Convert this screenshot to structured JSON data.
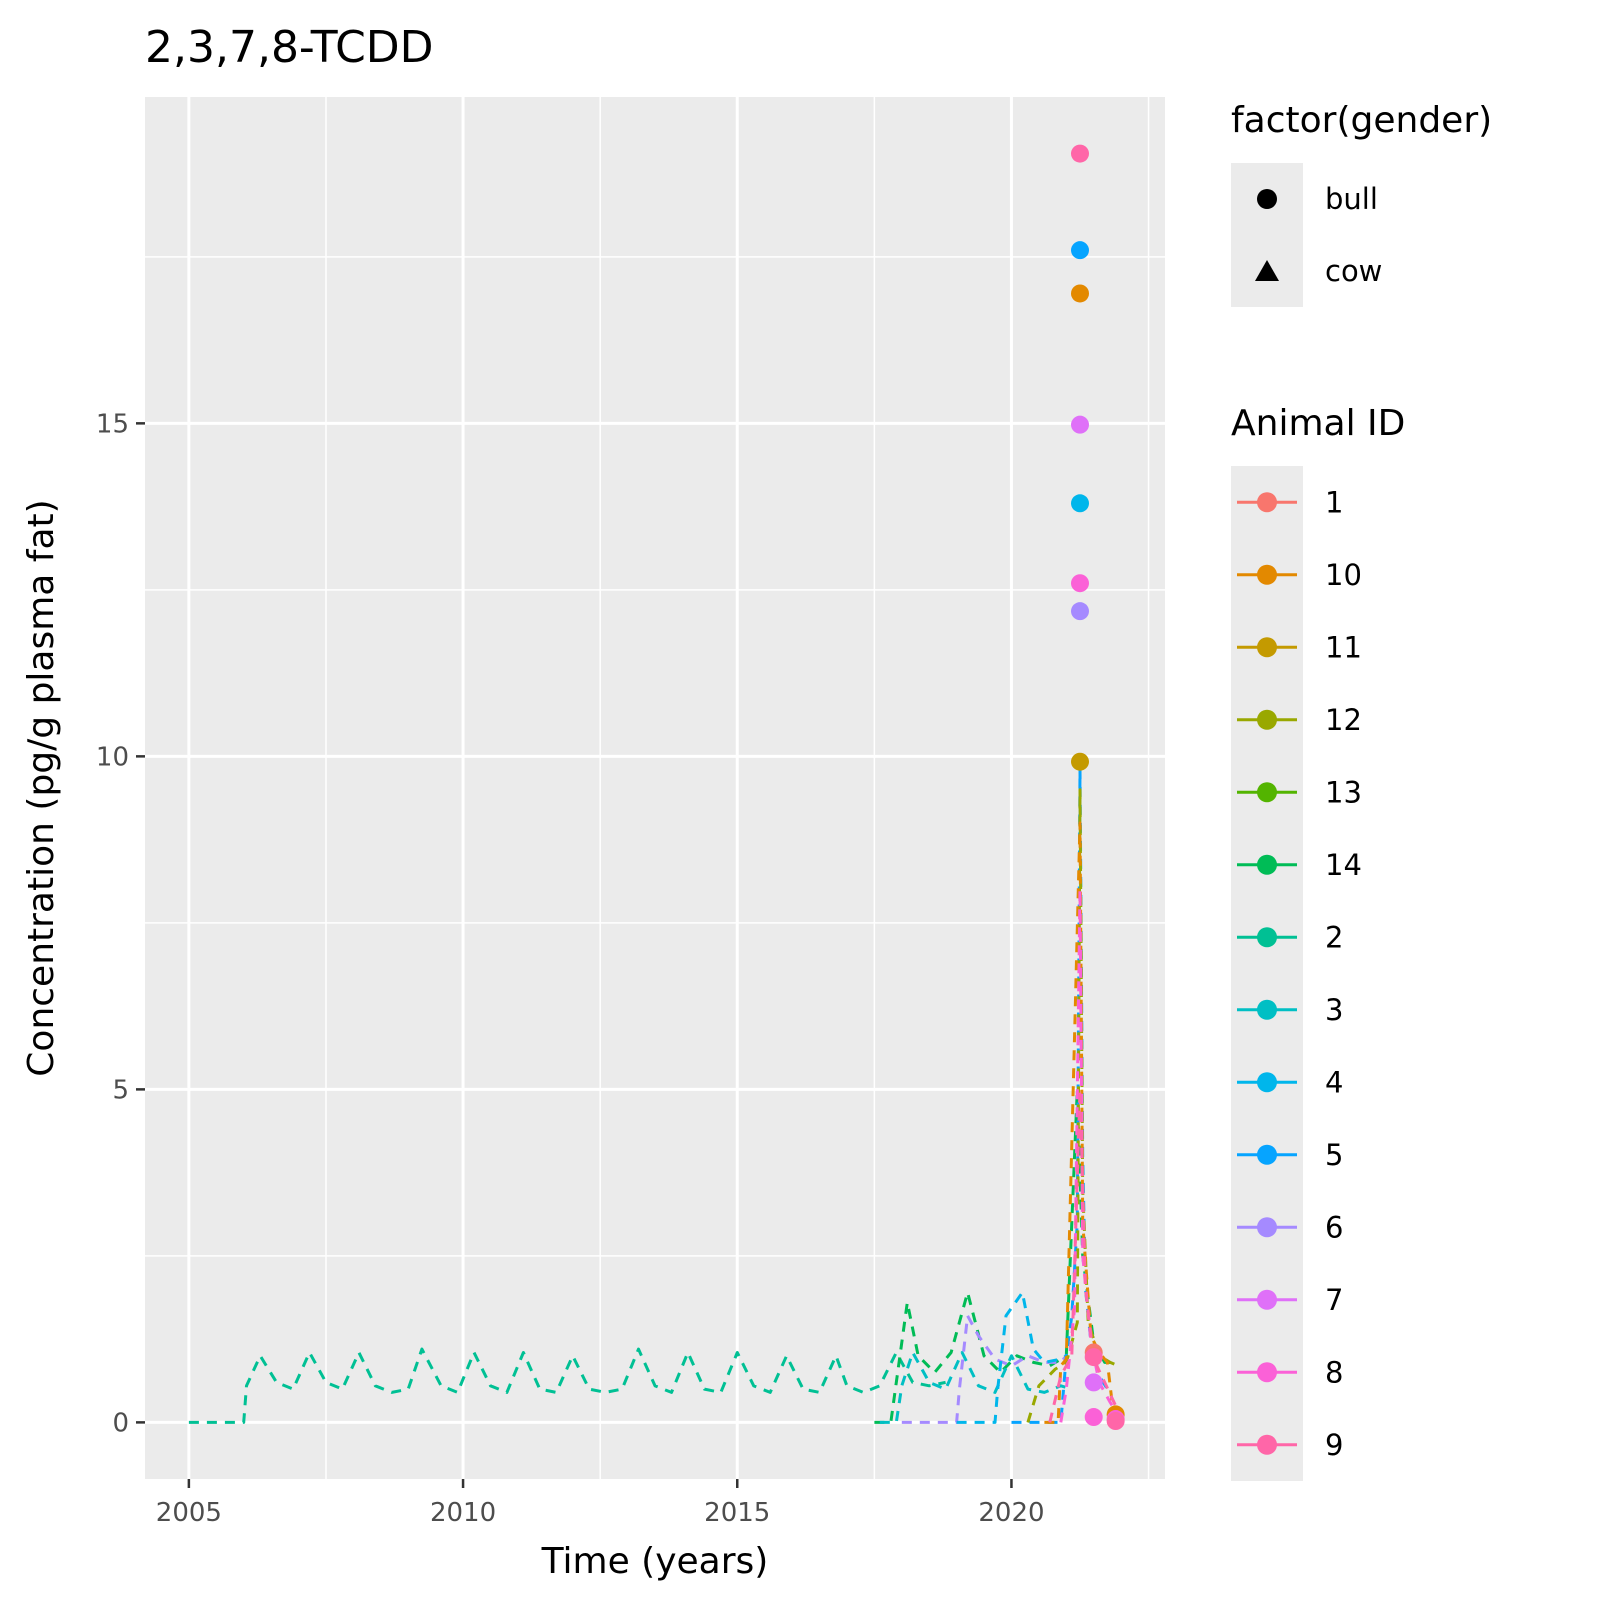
{
  "chart_data": {
    "type": "line",
    "title": "2,3,7,8-TCDD",
    "xlabel": "Time (years)",
    "ylabel": "Concentration (pg/g plasma fat)",
    "xlim": [
      2004.2,
      2022.8
    ],
    "ylim": [
      -0.85,
      19.9
    ],
    "x_ticks": [
      2005,
      2010,
      2015,
      2020
    ],
    "x_tick_labels": [
      "2005",
      "2010",
      "2015",
      "2020"
    ],
    "y_ticks": [
      0,
      5,
      10,
      15
    ],
    "y_tick_labels": [
      "0",
      "5",
      "10",
      "15"
    ],
    "grid": true,
    "legend_position": "right",
    "shape_legend": {
      "title": "factor(gender)",
      "entries": [
        {
          "label": "bull",
          "shape": "circle"
        },
        {
          "label": "cow",
          "shape": "triangle"
        }
      ]
    },
    "color_legend": {
      "title": "Animal ID",
      "entries": [
        {
          "label": "1",
          "color": "#F8766D"
        },
        {
          "label": "10",
          "color": "#E38900"
        },
        {
          "label": "11",
          "color": "#C49A00"
        },
        {
          "label": "12",
          "color": "#99A800"
        },
        {
          "label": "13",
          "color": "#53B400"
        },
        {
          "label": "14",
          "color": "#00BC56"
        },
        {
          "label": "2",
          "color": "#00C094"
        },
        {
          "label": "3",
          "color": "#00BFC4"
        },
        {
          "label": "4",
          "color": "#00B6EB"
        },
        {
          "label": "5",
          "color": "#06A4FF"
        },
        {
          "label": "6",
          "color": "#A58AFF"
        },
        {
          "label": "7",
          "color": "#DF70F8"
        },
        {
          "label": "8",
          "color": "#FB61D7"
        },
        {
          "label": "9",
          "color": "#FF66A8"
        }
      ]
    },
    "series": [
      {
        "id": "2",
        "color": "#00C094",
        "x": [
          2005.0,
          2006.0,
          2006.05,
          2006.3,
          2006.6,
          2006.9,
          2007.2,
          2007.5,
          2007.8,
          2008.1,
          2008.4,
          2008.7,
          2009.0,
          2009.25,
          2009.6,
          2009.9,
          2010.2,
          2010.5,
          2010.8,
          2011.1,
          2011.4,
          2011.7,
          2012.0,
          2012.3,
          2012.6,
          2012.9,
          2013.2,
          2013.5,
          2013.8,
          2014.1,
          2014.4,
          2014.7,
          2015.0,
          2015.3,
          2015.6,
          2015.9,
          2016.2,
          2016.5,
          2016.8,
          2017.0,
          2017.3,
          2017.6,
          2017.9,
          2018.2,
          2018.5,
          2018.8
        ],
        "y": [
          0.0,
          0.0,
          0.55,
          1.0,
          0.6,
          0.5,
          1.05,
          0.6,
          0.5,
          1.05,
          0.55,
          0.45,
          0.5,
          1.1,
          0.55,
          0.45,
          1.05,
          0.55,
          0.45,
          1.05,
          0.5,
          0.45,
          1.0,
          0.5,
          0.45,
          0.5,
          1.1,
          0.55,
          0.45,
          1.05,
          0.5,
          0.45,
          1.05,
          0.55,
          0.45,
          1.0,
          0.5,
          0.45,
          1.0,
          0.55,
          0.45,
          0.55,
          1.05,
          0.6,
          0.55,
          0.6
        ]
      },
      {
        "id": "14",
        "color": "#00BC56",
        "x": [
          2017.5,
          2017.8,
          2017.9,
          2018.1,
          2018.3,
          2018.6,
          2018.9,
          2019.2,
          2019.5,
          2019.8,
          2020.1,
          2020.4,
          2020.7,
          2021.0,
          2021.2,
          2021.3,
          2021.5,
          2021.7,
          2021.9
        ],
        "y": [
          0.0,
          0.0,
          0.6,
          1.8,
          1.0,
          0.75,
          1.05,
          1.95,
          1.0,
          0.75,
          1.0,
          0.9,
          0.85,
          1.0,
          5.0,
          2.5,
          1.2,
          0.9,
          0.9
        ]
      },
      {
        "id": "3",
        "color": "#00BFC4",
        "x": [
          2017.6,
          2017.9,
          2018.0,
          2018.2,
          2018.5,
          2018.8,
          2019.1,
          2019.4,
          2019.7,
          2020.0,
          2020.3,
          2020.6,
          2020.9,
          2021.1
        ],
        "y": [
          0.0,
          0.0,
          0.55,
          1.05,
          0.6,
          0.5,
          1.05,
          0.55,
          0.45,
          1.0,
          0.5,
          0.45,
          0.55,
          0.5
        ]
      },
      {
        "id": "6",
        "color": "#A58AFF",
        "x": [
          2018.0,
          2019.0,
          2019.05,
          2019.2,
          2019.4,
          2019.7,
          2020.0,
          2020.3,
          2020.6,
          2020.9,
          2021.0
        ],
        "y": [
          0.0,
          0.0,
          0.5,
          1.6,
          1.3,
          0.95,
          0.85,
          1.0,
          0.9,
          0.9,
          1.0
        ]
      },
      {
        "id": "4",
        "color": "#00B6EB",
        "x": [
          2019.0,
          2019.7,
          2019.75,
          2019.9,
          2020.2,
          2020.4,
          2020.6,
          2020.9,
          2021.0
        ],
        "y": [
          0.0,
          0.0,
          0.5,
          1.6,
          1.95,
          1.1,
          0.9,
          0.95,
          1.0
        ]
      },
      {
        "id": "5",
        "color": "#06A4FF",
        "x": [
          2020.0,
          2020.9,
          2021.0,
          2021.1,
          2021.2,
          2021.25,
          2021.3,
          2021.35,
          2021.45,
          2021.6,
          2021.75
        ],
        "y": [
          0.0,
          0.0,
          1.0,
          1.6,
          3.0,
          9.8,
          4.0,
          2.0,
          1.2,
          0.7,
          0.5
        ]
      },
      {
        "id": "12",
        "color": "#99A800",
        "x": [
          2020.3,
          2020.5,
          2020.8,
          2021.0,
          2021.2,
          2021.25,
          2021.3,
          2021.4,
          2021.6,
          2021.8,
          2021.95
        ],
        "y": [
          0.0,
          0.55,
          0.8,
          0.9,
          1.5,
          9.5,
          3.5,
          1.5,
          1.0,
          0.9,
          0.85
        ]
      },
      {
        "id": "10",
        "color": "#E38900",
        "x": [
          2020.6,
          2020.85,
          2020.9,
          2021.0,
          2021.25,
          2021.3,
          2021.45,
          2021.6,
          2021.75,
          2021.85,
          2021.95
        ],
        "y": [
          0.0,
          0.0,
          0.85,
          0.95,
          9.0,
          3.0,
          1.3,
          1.05,
          0.9,
          0.2,
          0.15
        ]
      },
      {
        "id": "8",
        "color": "#FB61D7",
        "x": [
          2020.9,
          2021.0,
          2021.15,
          2021.25,
          2021.3,
          2021.45,
          2021.6,
          2021.8,
          2021.95
        ],
        "y": [
          0.0,
          0.5,
          1.7,
          8.0,
          2.5,
          1.2,
          0.6,
          0.3,
          0.1
        ]
      },
      {
        "id": "9",
        "color": "#FF66A8",
        "x": [
          2020.7,
          2020.9,
          2021.1,
          2021.25,
          2021.35,
          2021.5,
          2021.7,
          2021.9,
          2021.95
        ],
        "y": [
          0.0,
          0.7,
          1.0,
          5.0,
          2.0,
          0.95,
          0.6,
          0.25,
          0.1
        ]
      }
    ],
    "points": [
      {
        "id": "9",
        "color": "#FF66A8",
        "x": 2021.25,
        "y": 19.05,
        "shape": "circle"
      },
      {
        "id": "5",
        "color": "#06A4FF",
        "x": 2021.25,
        "y": 17.6,
        "shape": "circle"
      },
      {
        "id": "10",
        "color": "#E38900",
        "x": 2021.25,
        "y": 16.95,
        "shape": "circle"
      },
      {
        "id": "7",
        "color": "#DF70F8",
        "x": 2021.25,
        "y": 14.98,
        "shape": "circle"
      },
      {
        "id": "4",
        "color": "#00B6EB",
        "x": 2021.25,
        "y": 13.8,
        "shape": "circle"
      },
      {
        "id": "8",
        "color": "#FB61D7",
        "x": 2021.25,
        "y": 12.6,
        "shape": "circle"
      },
      {
        "id": "6",
        "color": "#A58AFF",
        "x": 2021.25,
        "y": 12.18,
        "shape": "circle"
      },
      {
        "id": "11",
        "color": "#C49A00",
        "x": 2021.25,
        "y": 9.92,
        "shape": "circle"
      },
      {
        "id": "1",
        "color": "#F8766D",
        "x": 2021.5,
        "y": 1.05,
        "shape": "circle"
      },
      {
        "id": "9",
        "color": "#FF66A8",
        "x": 2021.5,
        "y": 0.98,
        "shape": "circle"
      },
      {
        "id": "7",
        "color": "#DF70F8",
        "x": 2021.5,
        "y": 0.6,
        "shape": "circle"
      },
      {
        "id": "8",
        "color": "#FB61D7",
        "x": 2021.5,
        "y": 0.08,
        "shape": "circle"
      },
      {
        "id": "10",
        "color": "#E38900",
        "x": 2021.9,
        "y": 0.12,
        "shape": "circle"
      },
      {
        "id": "8",
        "color": "#FB61D7",
        "x": 2021.9,
        "y": 0.05,
        "shape": "circle"
      },
      {
        "id": "9",
        "color": "#FF66A8",
        "x": 2021.9,
        "y": 0.02,
        "shape": "circle"
      }
    ]
  }
}
